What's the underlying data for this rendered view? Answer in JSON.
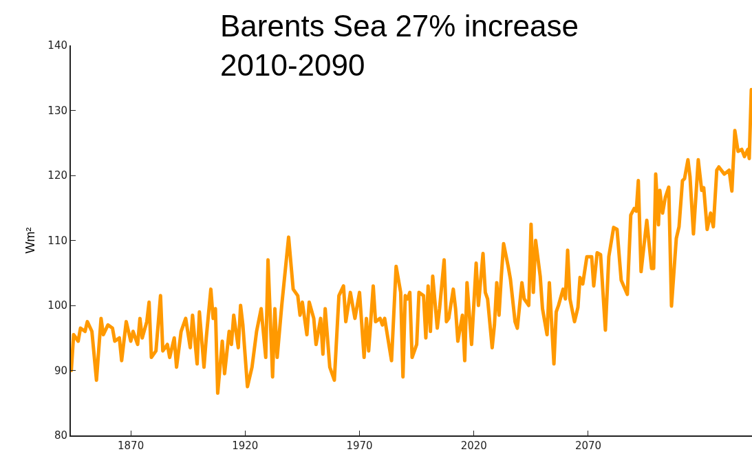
{
  "chart_data": {
    "type": "line",
    "title": "Barents Sea 27% increase\n2010-2090",
    "ylabel": "Wm²",
    "xlim": [
      1843.8,
      2141.6
    ],
    "xticks": [
      1870,
      1920,
      1970,
      2020,
      2070
    ],
    "ylim": [
      80,
      140
    ],
    "yticks": [
      80,
      90,
      100,
      110,
      120,
      130,
      140
    ],
    "grid": false,
    "marker": "none",
    "line_style": "solid",
    "series": [
      {
        "color": "#ff9900",
        "x": [
          1844,
          1845,
          1847,
          1848,
          1850,
          1851,
          1853,
          1855,
          1857,
          1858,
          1860,
          1862,
          1863,
          1865,
          1866,
          1868,
          1870,
          1871,
          1873,
          1874,
          1875,
          1877,
          1878,
          1879,
          1881,
          1883,
          1884,
          1886,
          1887,
          1889,
          1890,
          1892,
          1894,
          1896,
          1897,
          1899,
          1900,
          1902,
          1903,
          1905,
          1906,
          1907,
          1908,
          1910,
          1911,
          1913,
          1914,
          1915,
          1917,
          1918,
          1919,
          1921,
          1923,
          1925,
          1927,
          1929,
          1930,
          1932,
          1933,
          1934,
          1936,
          1939,
          1941,
          1943,
          1944,
          1945,
          1947,
          1948,
          1950,
          1951,
          1953,
          1954,
          1955,
          1957,
          1959,
          1961,
          1963,
          1964,
          1966,
          1968,
          1970,
          1972,
          1973,
          1974,
          1976,
          1977,
          1979,
          1980,
          1981,
          1984,
          1986,
          1988,
          1989,
          1990,
          1991,
          1992,
          1993,
          1995,
          1996,
          1998,
          1999,
          2000,
          2001,
          2002,
          2004,
          2005,
          2007,
          2008,
          2009,
          2011,
          2012,
          2013,
          2015,
          2016,
          2017,
          2019,
          2021,
          2022,
          2024,
          2025,
          2026,
          2028,
          2029,
          2030,
          2031,
          2032,
          2033,
          2035,
          2036,
          2038,
          2039,
          2041,
          2042,
          2044,
          2045,
          2046,
          2047,
          2049,
          2050,
          2052,
          2053,
          2055,
          2056,
          2057,
          2059,
          2060,
          2061,
          2062,
          2064,
          2065.5,
          2066.4,
          2067.6,
          2069.4,
          2071.5,
          2072.4,
          2073.9,
          2075.4,
          2077.5,
          2079.0,
          2081.1,
          2082.6,
          2084.4,
          2087.1,
          2088.6,
          2090.1,
          2091.0,
          2091.9,
          2093.1,
          2095.6,
          2097.7,
          2098.6,
          2099.5,
          2100.7,
          2101.3,
          2102.5,
          2103.7,
          2105.2,
          2106.4,
          2108.5,
          2109.7,
          2111.2,
          2112.1,
          2113.6,
          2114.5,
          2116.0,
          2118.1,
          2119.6,
          2120.5,
          2122.0,
          2123.5,
          2124.7,
          2126.2,
          2127.1,
          2129.5,
          2131.6,
          2132.8,
          2134.1,
          2135.5,
          2137.1,
          2138.3,
          2139.8,
          2140.4,
          2141.3
        ],
        "values": [
          90,
          95.5,
          94.5,
          96.5,
          96,
          97.5,
          96,
          88.5,
          98,
          95.5,
          97,
          96.5,
          94.5,
          95,
          91.5,
          97.5,
          94.5,
          96,
          94,
          98,
          95,
          97.5,
          100.5,
          92,
          93,
          101.5,
          93,
          94,
          92,
          95,
          90.5,
          96,
          98,
          93.5,
          98.5,
          91,
          99,
          90.5,
          95,
          102.5,
          98,
          99.5,
          86.5,
          94.5,
          89.5,
          96,
          94,
          98.5,
          93.5,
          100,
          97,
          87.5,
          90.5,
          96,
          99.5,
          92,
          107,
          89,
          99.5,
          92,
          100,
          110.5,
          102.5,
          101.5,
          98.5,
          100.5,
          95.5,
          100.5,
          98,
          94,
          98,
          92.5,
          99.5,
          90.5,
          88.5,
          101.5,
          103,
          97.5,
          102,
          98,
          102,
          92,
          98,
          93,
          103,
          97.5,
          98,
          97,
          98,
          91.5,
          106,
          102,
          89,
          101.5,
          101,
          102,
          92,
          94,
          102,
          101.5,
          95,
          103,
          96,
          104.5,
          96.5,
          99.5,
          107,
          97.5,
          98,
          102.5,
          99.5,
          94.5,
          98.5,
          91.5,
          103.5,
          94,
          106.5,
          100,
          108,
          102,
          101,
          93.5,
          97,
          103.5,
          98.5,
          104.5,
          109.5,
          106,
          104,
          97.5,
          96.5,
          103.5,
          101,
          100,
          112.5,
          102,
          110,
          104.5,
          99.5,
          95.5,
          103.5,
          91,
          99,
          100,
          102.5,
          101,
          108.5,
          101,
          97.5,
          99.7,
          104.3,
          103.3,
          107.5,
          107.5,
          103,
          108.1,
          107.8,
          96.2,
          107.5,
          112,
          111.7,
          103.9,
          101.7,
          113.9,
          114.9,
          114.5,
          119.2,
          105.2,
          113.1,
          105.7,
          105.7,
          120.2,
          112.4,
          117.7,
          114.2,
          116.6,
          118.2,
          99.9,
          110.3,
          112.1,
          119.2,
          119.5,
          122.4,
          119.8,
          111,
          122.4,
          117.7,
          118.1,
          111.7,
          114.2,
          112.1,
          120.8,
          121.3,
          120.2,
          120.8,
          117.6,
          126.9,
          123.7,
          124,
          122.9,
          124,
          122.6,
          133.2
        ]
      }
    ]
  }
}
